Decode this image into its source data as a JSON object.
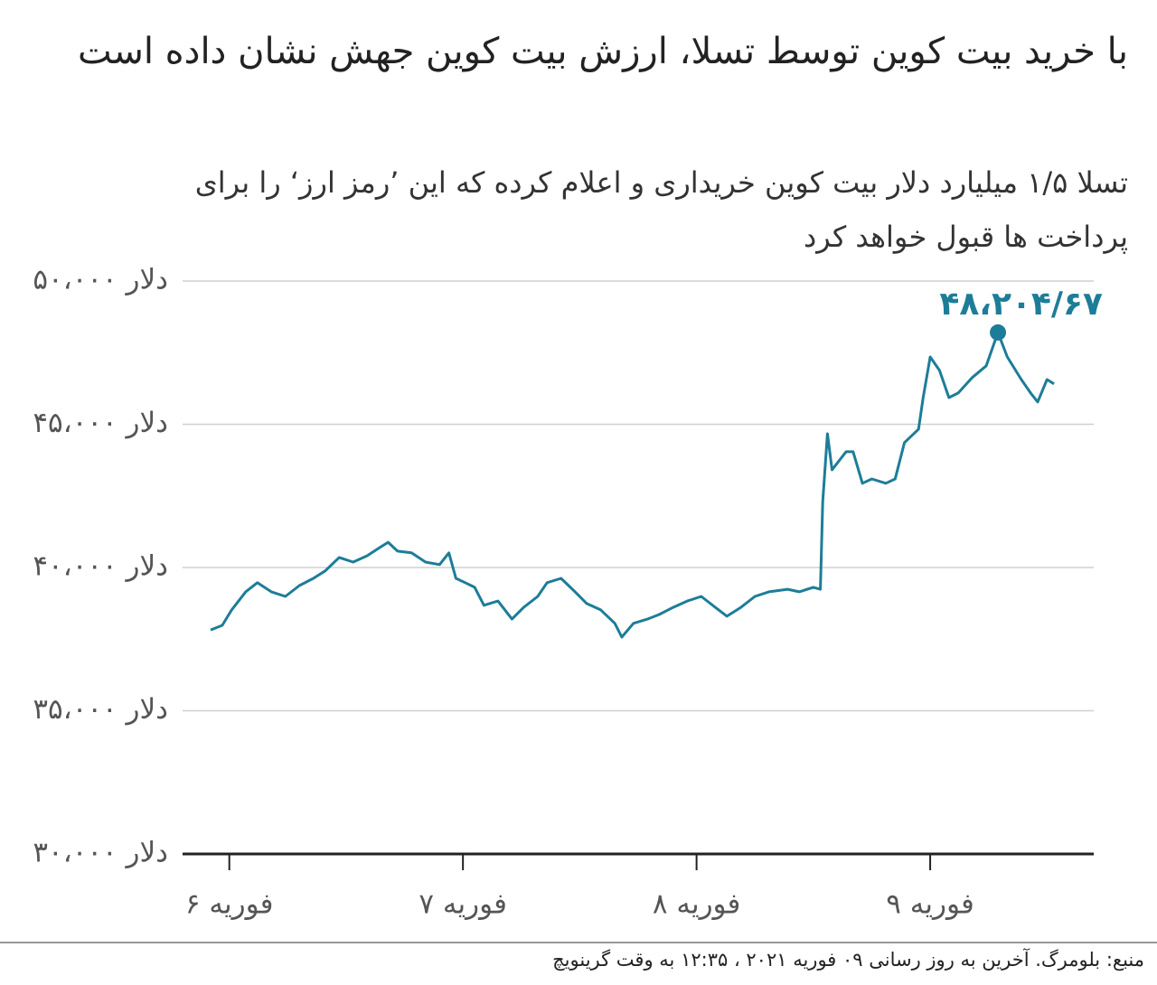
{
  "chart_data": {
    "type": "line",
    "title": "با خرید بیت کوین توسط تسلا، ارزش بیت کوین جهش نشان داده است",
    "subtitle": "تسلا ۱/۵ میلیارد دلار بیت کوین خریداری و اعلام کرده که این ’رمز ارز‘ را برای پرداخت ها قبول خواهد کرد",
    "source": "منبع: بلومرگ. آخرین به روز رسانی ۰۹ فوریه ۲۰۲۱ ، ۱۲:۳۵ به وقت گرینویچ",
    "xlim": [
      5.8,
      9.7
    ],
    "xticks": [
      {
        "value": 6,
        "label": "۶ فوریه"
      },
      {
        "value": 7,
        "label": "۷ فوریه"
      },
      {
        "value": 8,
        "label": "۸ فوریه"
      },
      {
        "value": 9,
        "label": "۹ فوریه"
      }
    ],
    "ylim": [
      30000,
      50000
    ],
    "yticks": [
      {
        "value": 30000,
        "label": "۳۰،۰۰۰ دلار"
      },
      {
        "value": 35000,
        "label": "۳۵،۰۰۰ دلار"
      },
      {
        "value": 40000,
        "label": "۴۰،۰۰۰ دلار"
      },
      {
        "value": 45000,
        "label": "۴۵،۰۰۰ دلار"
      },
      {
        "value": 50000,
        "label": "۵۰،۰۰۰ دلار"
      }
    ],
    "grid": true,
    "x": [
      5.92,
      5.97,
      6.01,
      6.07,
      6.12,
      6.18,
      6.24,
      6.3,
      6.36,
      6.41,
      6.47,
      6.53,
      6.59,
      6.65,
      6.68,
      6.72,
      6.78,
      6.84,
      6.9,
      6.94,
      6.97,
      7.01,
      7.05,
      7.09,
      7.15,
      7.21,
      7.26,
      7.32,
      7.36,
      7.42,
      7.48,
      7.53,
      7.59,
      7.65,
      7.68,
      7.73,
      7.79,
      7.84,
      7.9,
      7.96,
      8.02,
      8.08,
      8.13,
      8.19,
      8.25,
      8.31,
      8.39,
      8.44,
      8.5,
      8.53,
      8.54,
      8.56,
      8.58,
      8.64,
      8.67,
      8.71,
      8.75,
      8.81,
      8.85,
      8.89,
      8.95,
      8.97,
      9.0,
      9.04,
      9.08,
      9.12,
      9.18,
      9.24,
      9.29,
      9.33,
      9.39,
      9.43,
      9.46,
      9.5,
      9.53
    ],
    "series": [
      {
        "color": "#1d7d98",
        "values": [
          37820,
          37980,
          38520,
          39150,
          39470,
          39150,
          38990,
          39370,
          39620,
          39880,
          40350,
          40190,
          40410,
          40730,
          40880,
          40570,
          40510,
          40190,
          40100,
          40510,
          39620,
          39470,
          39310,
          38680,
          38830,
          38200,
          38610,
          38990,
          39470,
          39620,
          39150,
          38740,
          38520,
          38050,
          37570,
          38050,
          38200,
          38360,
          38610,
          38830,
          38990,
          38610,
          38300,
          38610,
          38990,
          39150,
          39240,
          39150,
          39310,
          39240,
          42300,
          44670,
          43410,
          44040,
          44040,
          42940,
          43090,
          42940,
          43090,
          44360,
          44830,
          45930,
          47350,
          46880,
          45930,
          46090,
          46630,
          47040,
          48204.67,
          47350,
          46560,
          46090,
          45780,
          46560,
          46410
        ]
      }
    ],
    "annotation": {
      "x": 9.29,
      "y": 48204.67,
      "label": "۴۸،۲۰۴/۶۷"
    }
  }
}
